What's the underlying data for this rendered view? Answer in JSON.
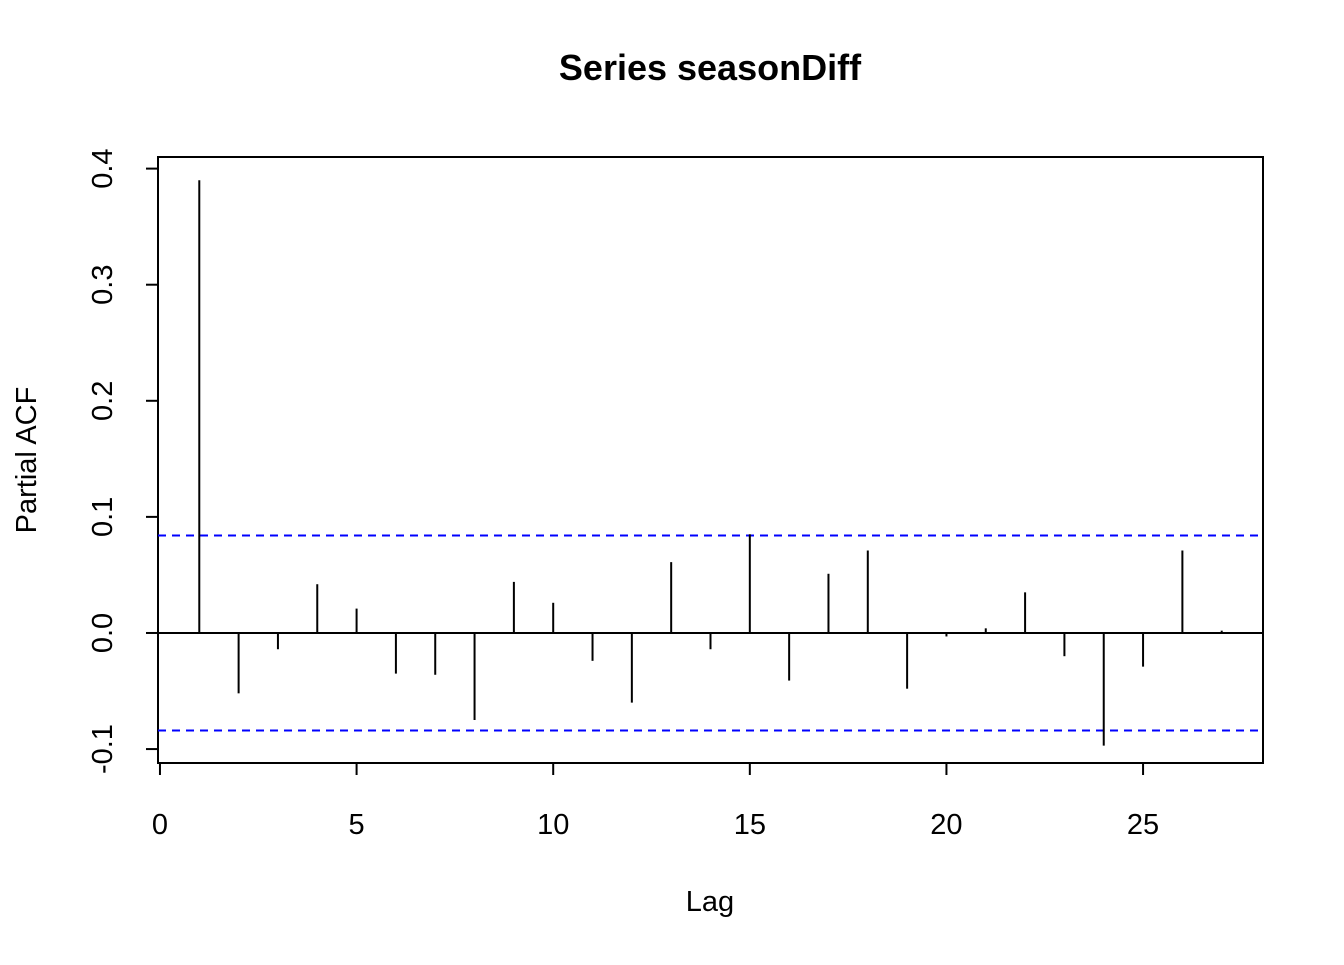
{
  "chart_data": {
    "type": "bar",
    "title": "Series  seasonDiff",
    "xlabel": "Lag",
    "ylabel": "Partial ACF",
    "xlim": [
      -0.05,
      28.05
    ],
    "ylim": [
      -0.112,
      0.41
    ],
    "x_ticks": [
      "0",
      "5",
      "10",
      "15",
      "20",
      "25"
    ],
    "y_ticks": [
      "-0.1",
      "0.0",
      "0.1",
      "0.2",
      "0.3",
      "0.4"
    ],
    "x": [
      1,
      2,
      3,
      4,
      5,
      6,
      7,
      8,
      9,
      10,
      11,
      12,
      13,
      14,
      15,
      16,
      17,
      18,
      19,
      20,
      21,
      22,
      23,
      24,
      25,
      26,
      27
    ],
    "values": [
      0.39,
      -0.052,
      -0.014,
      0.042,
      0.021,
      -0.035,
      -0.036,
      -0.075,
      0.044,
      0.026,
      -0.024,
      -0.06,
      0.061,
      -0.014,
      0.085,
      -0.041,
      0.051,
      0.071,
      -0.048,
      -0.003,
      0.004,
      0.035,
      -0.02,
      -0.097,
      -0.029,
      0.071,
      0.002
    ],
    "confidence_limit": 0.084,
    "bar_color": "#000000",
    "ci_color": "#0000ff",
    "grid": false
  }
}
